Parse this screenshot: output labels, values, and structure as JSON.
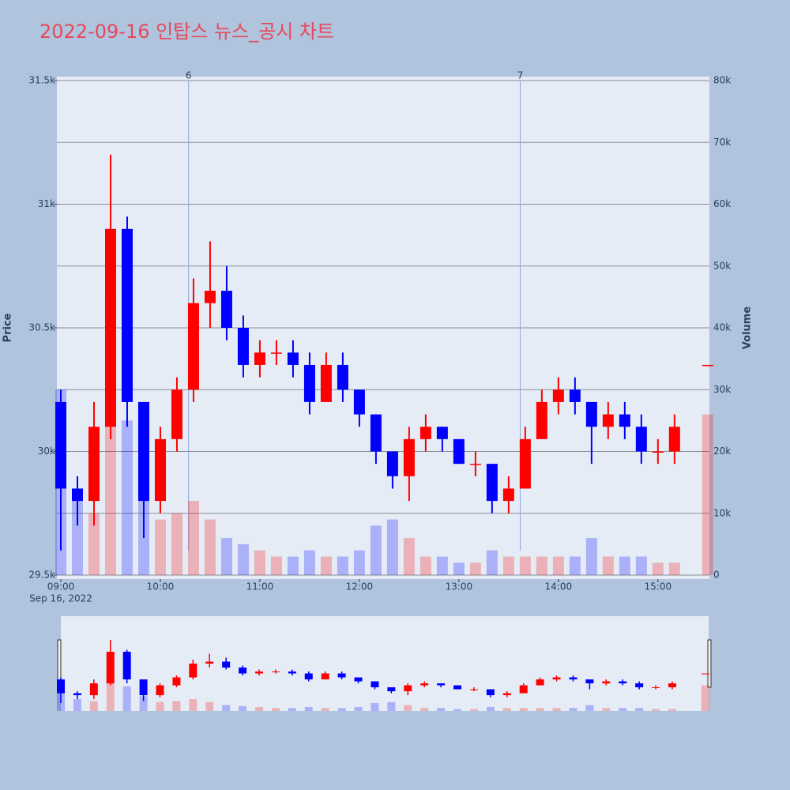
{
  "chart_data": {
    "type": "candlestick",
    "title": "2022-09-16 인탑스 뉴스_공시 차트",
    "date_label": "Sep 16, 2022",
    "y_label": "Price",
    "y2_label": "Volume",
    "increasing_color": "#ff0000",
    "decreasing_color": "#0000ff",
    "x": [
      "09:00",
      "09:10",
      "09:20",
      "09:30",
      "09:40",
      "09:50",
      "10:00",
      "10:10",
      "10:20",
      "10:30",
      "10:40",
      "10:50",
      "11:00",
      "11:10",
      "11:20",
      "11:30",
      "11:40",
      "11:50",
      "12:00",
      "12:10",
      "12:20",
      "12:30",
      "12:40",
      "12:50",
      "13:00",
      "13:10",
      "13:20",
      "13:30",
      "13:40",
      "13:50",
      "14:00",
      "14:10",
      "14:20",
      "14:30",
      "14:40",
      "14:50",
      "15:00",
      "15:10",
      "15:30"
    ],
    "open": [
      30200,
      29850,
      29800,
      30100,
      30900,
      30200,
      29800,
      30050,
      30250,
      30600,
      30650,
      30500,
      30350,
      30400,
      30400,
      30350,
      30200,
      30350,
      30250,
      30150,
      30000,
      29900,
      30050,
      30100,
      30050,
      29950,
      29950,
      29800,
      29850,
      30050,
      30200,
      30250,
      30200,
      30100,
      30150,
      30100,
      30000,
      30000,
      30350
    ],
    "high": [
      30250,
      29900,
      30200,
      31200,
      30950,
      30200,
      30100,
      30300,
      30700,
      30850,
      30750,
      30550,
      30450,
      30450,
      30450,
      30400,
      30400,
      30400,
      30250,
      30150,
      30000,
      30100,
      30150,
      30100,
      30050,
      30000,
      29950,
      29900,
      30100,
      30250,
      30300,
      30300,
      30200,
      30200,
      30200,
      30150,
      30050,
      30150,
      30350
    ],
    "low": [
      29600,
      29700,
      29700,
      30050,
      30100,
      29650,
      29750,
      30000,
      30200,
      30500,
      30450,
      30300,
      30300,
      30350,
      30300,
      30150,
      30200,
      30200,
      30100,
      29950,
      29850,
      29800,
      30000,
      30000,
      29950,
      29900,
      29750,
      29750,
      29850,
      30050,
      30150,
      30150,
      29950,
      30050,
      30050,
      29950,
      29950,
      29950,
      30350
    ],
    "close": [
      29850,
      29800,
      30100,
      30900,
      30200,
      29800,
      30050,
      30250,
      30600,
      30650,
      30500,
      30350,
      30400,
      30400,
      30350,
      30200,
      30350,
      30250,
      30150,
      30000,
      29900,
      30050,
      30100,
      30050,
      29950,
      29950,
      29800,
      29850,
      30050,
      30200,
      30250,
      30200,
      30100,
      30150,
      30100,
      30000,
      30000,
      30100,
      30350
    ],
    "volume": [
      30000,
      12000,
      10000,
      45000,
      25000,
      15000,
      9000,
      10000,
      12000,
      9000,
      6000,
      5000,
      4000,
      3000,
      3000,
      4000,
      3000,
      3000,
      4000,
      8000,
      9000,
      6000,
      3000,
      3000,
      2000,
      2000,
      4000,
      3000,
      3000,
      3000,
      3000,
      3000,
      6000,
      3000,
      3000,
      3000,
      2000,
      2000,
      26000
    ],
    "xlim": [
      "09:00",
      "15:32"
    ],
    "xticks": [
      "09:00",
      "10:00",
      "11:00",
      "12:00",
      "13:00",
      "14:00",
      "15:00"
    ],
    "ylim": [
      29500,
      31500
    ],
    "yticks": [
      {
        "value": 29500,
        "label": "29.5k"
      },
      {
        "value": 30000,
        "label": "30k"
      },
      {
        "value": 30500,
        "label": "30.5k"
      },
      {
        "value": 31000,
        "label": "31k"
      },
      {
        "value": 31500,
        "label": "31.5k"
      }
    ],
    "y2lim": [
      0,
      80000
    ],
    "y2ticks": [
      0,
      {
        "value": 10000,
        "label": "10k"
      },
      {
        "value": 20000,
        "label": "20k"
      },
      {
        "value": 30000,
        "label": "30k"
      },
      {
        "value": 40000,
        "label": "40k"
      },
      {
        "value": 50000,
        "label": "50k"
      },
      {
        "value": 60000,
        "label": "60k"
      },
      {
        "value": 70000,
        "label": "70k"
      },
      {
        "value": 80000,
        "label": "80k"
      }
    ],
    "grid": true,
    "annotations": [
      {
        "x": "10:17",
        "label": "6"
      },
      {
        "x": "13:37",
        "label": "7"
      }
    ]
  }
}
